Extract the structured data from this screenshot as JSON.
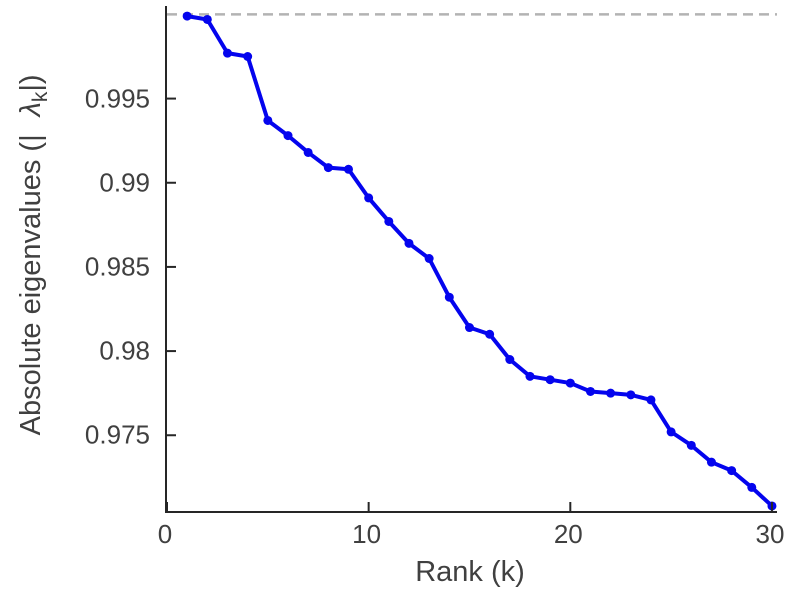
{
  "chart_data": {
    "type": "line",
    "title": "",
    "xlabel": "Rank (k)",
    "ylabel_parts": {
      "prefix": "Absolute eigenvalues (|",
      "symbol": "λ",
      "sub": "k",
      "suffix": "|)"
    },
    "x": [
      1,
      2,
      3,
      4,
      5,
      6,
      7,
      8,
      9,
      10,
      11,
      12,
      13,
      14,
      15,
      16,
      17,
      18,
      19,
      20,
      21,
      22,
      23,
      24,
      25,
      26,
      27,
      28,
      29,
      30
    ],
    "y": [
      0.9999,
      0.9997,
      0.9977,
      0.9975,
      0.9937,
      0.9928,
      0.9918,
      0.9909,
      0.9908,
      0.9891,
      0.9877,
      0.9864,
      0.9855,
      0.9832,
      0.9814,
      0.981,
      0.9795,
      0.9785,
      0.9783,
      0.9781,
      0.9776,
      0.9775,
      0.9774,
      0.9771,
      0.9752,
      0.9744,
      0.9734,
      0.9729,
      0.9719,
      0.9708
    ],
    "xlim": [
      0,
      30.25
    ],
    "ylim": [
      0.9705,
      1.0005
    ],
    "x_ticks": {
      "values": [
        0,
        10,
        20,
        30
      ],
      "labels": [
        "0",
        "10",
        "20",
        "30"
      ]
    },
    "y_ticks": {
      "values": [
        0.975,
        0.98,
        0.985,
        0.99,
        0.995
      ],
      "labels": [
        "0.975",
        "0.98",
        "0.985",
        "0.99",
        "0.995"
      ]
    },
    "reference_line": {
      "y": 1.0,
      "style": "dashed"
    },
    "grid": false,
    "legend": "none",
    "marker": "circle",
    "colors": {
      "line": "#0404ee",
      "reference": "#b3b3b3",
      "axis": "#262626",
      "text": "#404040"
    }
  }
}
